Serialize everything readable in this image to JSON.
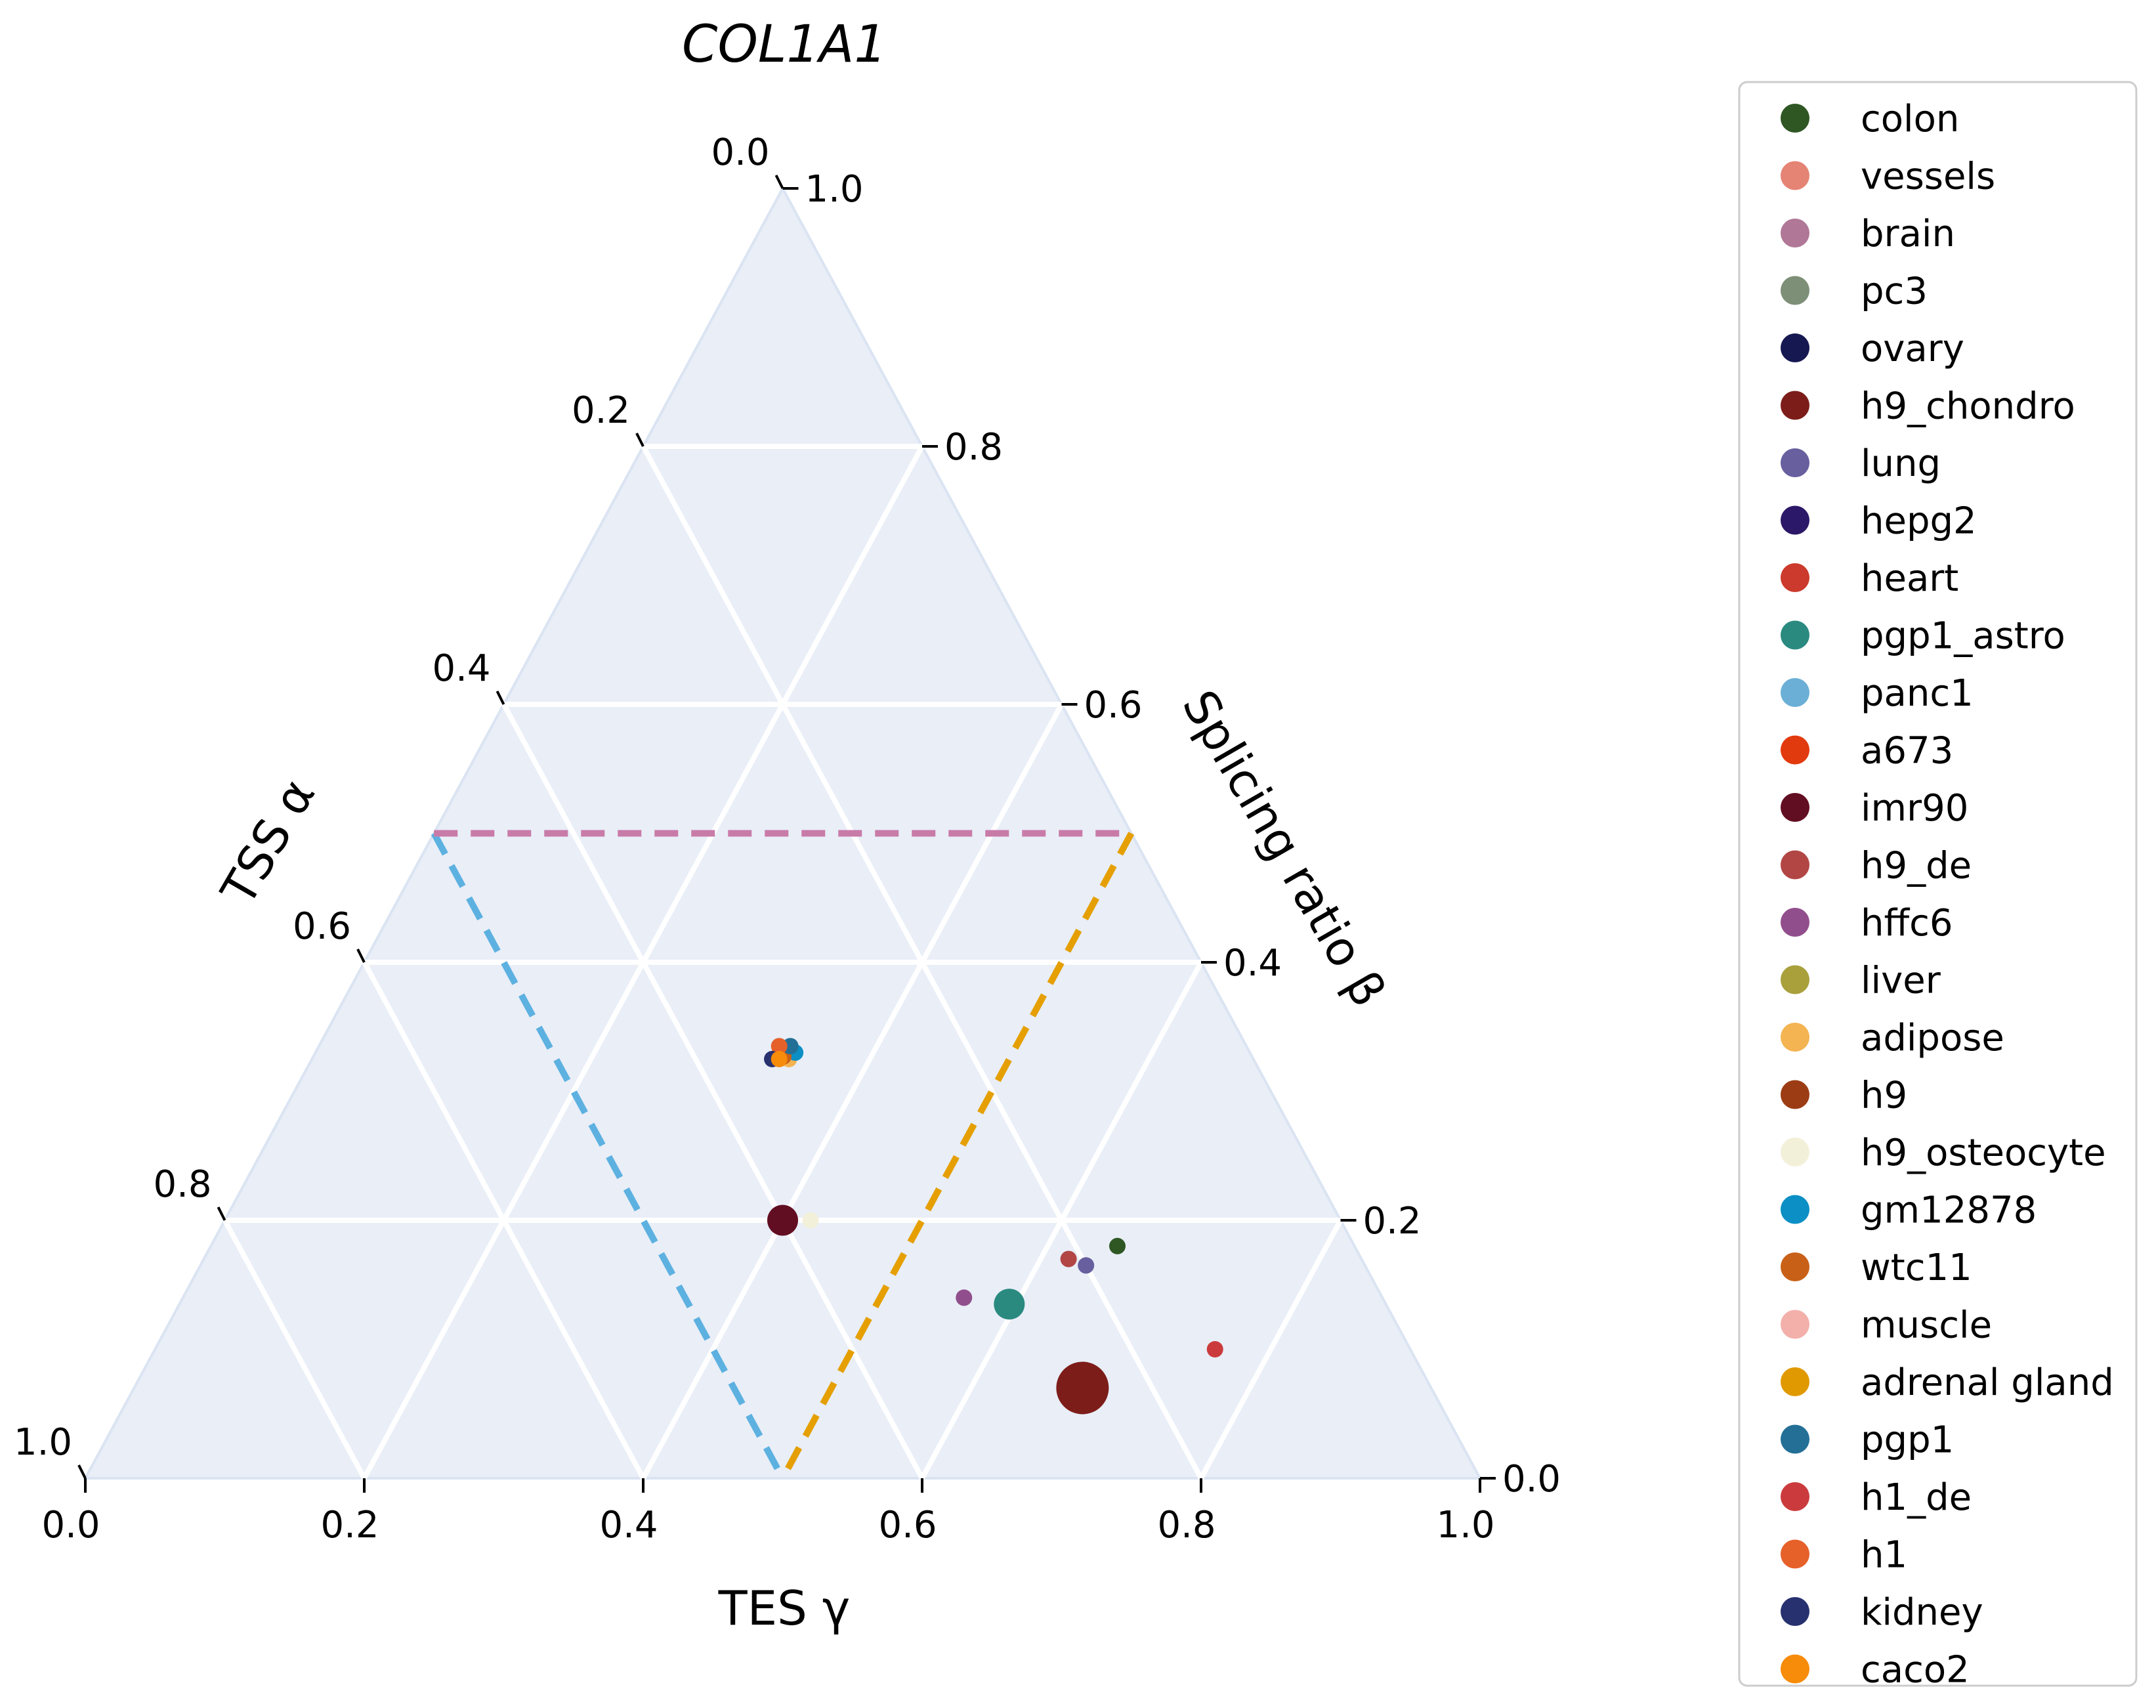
{
  "chart_data": {
    "type": "scatter",
    "subtype": "ternary",
    "title": "COL1A1",
    "axes": {
      "tss": {
        "label": "TSS α",
        "ticks": [
          "0.0",
          "0.2",
          "0.4",
          "0.6",
          "0.8",
          "1.0"
        ]
      },
      "splicing": {
        "label": "Splicing ratio β",
        "ticks": [
          "0.0",
          "0.2",
          "0.4",
          "0.6",
          "0.8",
          "1.0"
        ]
      },
      "tes": {
        "label": "TES γ",
        "ticks": [
          "0.0",
          "0.2",
          "0.4",
          "0.6",
          "0.8",
          "1.0"
        ]
      }
    },
    "grid": true,
    "background_color": "#e9eef7",
    "grid_step": 0.2,
    "reference_lines": [
      {
        "a": [
          0.5,
          0.5
        ],
        "b": [
          0.5,
          0.0
        ],
        "g": [
          0.0,
          0.5
        ],
        "color": "#5db1e0",
        "style": "dashed"
      },
      {
        "a": [
          0.0,
          0.5
        ],
        "b": [
          0.5,
          0.0
        ],
        "g": [
          0.5,
          0.5
        ],
        "color": "#e59f00",
        "style": "dashed"
      },
      {
        "a": [
          0.5,
          0.0
        ],
        "b": [
          0.5,
          0.5
        ],
        "g": [
          0.0,
          0.5
        ],
        "color": "#c97ba8",
        "style": "dashed"
      }
    ],
    "legend_position": "right",
    "series": [
      {
        "name": "colon",
        "color": "#2f5724",
        "points": [
          {
            "a": 0.17,
            "b": 0.18,
            "g": 0.65,
            "size": 1
          }
        ]
      },
      {
        "name": "vessels",
        "color": "#e58474",
        "points": []
      },
      {
        "name": "brain",
        "color": "#b07796",
        "points": []
      },
      {
        "name": "pc3",
        "color": "#7d8f77",
        "points": []
      },
      {
        "name": "ovary",
        "color": "#161851",
        "points": []
      },
      {
        "name": "h9_chondro",
        "color": "#7d1d19",
        "points": [
          {
            "a": 0.25,
            "b": 0.07,
            "g": 0.68,
            "size": 6
          }
        ]
      },
      {
        "name": "lung",
        "color": "#675f9e",
        "points": [
          {
            "a": 0.2,
            "b": 0.165,
            "g": 0.635,
            "size": 1
          }
        ]
      },
      {
        "name": "hepg2",
        "color": "#2c1868",
        "points": []
      },
      {
        "name": "heart",
        "color": "#cb3a2c",
        "points": []
      },
      {
        "name": "pgp1_astro",
        "color": "#2a8a80",
        "points": [
          {
            "a": 0.27,
            "b": 0.135,
            "g": 0.595,
            "size": 3
          }
        ]
      },
      {
        "name": "panc1",
        "color": "#6bafd6",
        "points": []
      },
      {
        "name": "a673",
        "color": "#e23a0f",
        "points": []
      },
      {
        "name": "imr90",
        "color": "#620e22",
        "points": [
          {
            "a": 0.4,
            "b": 0.2,
            "g": 0.4,
            "size": 3
          }
        ]
      },
      {
        "name": "h9_de",
        "color": "#b24645",
        "points": [
          {
            "a": 0.21,
            "b": 0.17,
            "g": 0.62,
            "size": 1
          }
        ]
      },
      {
        "name": "hffc6",
        "color": "#914e8c",
        "points": [
          {
            "a": 0.3,
            "b": 0.14,
            "g": 0.56,
            "size": 1
          }
        ]
      },
      {
        "name": "liver",
        "color": "#a9a03c",
        "points": []
      },
      {
        "name": "adipose",
        "color": "#f3b451",
        "points": [
          {
            "a": 0.333,
            "b": 0.325,
            "g": 0.342,
            "size": 1
          }
        ]
      },
      {
        "name": "h9",
        "color": "#9c3c14",
        "points": [
          {
            "a": 0.332,
            "b": 0.331,
            "g": 0.337,
            "size": 1
          }
        ]
      },
      {
        "name": "h9_osteocyte",
        "color": "#f3f0da",
        "points": [
          {
            "a": 0.38,
            "b": 0.2,
            "g": 0.42,
            "size": 1
          }
        ]
      },
      {
        "name": "gm12878",
        "color": "#0b8fc4",
        "points": [
          {
            "a": 0.326,
            "b": 0.33,
            "g": 0.344,
            "size": 1
          }
        ]
      },
      {
        "name": "wtc11",
        "color": "#c86117",
        "points": [
          {
            "a": 0.336,
            "b": 0.327,
            "g": 0.337,
            "size": 1
          }
        ]
      },
      {
        "name": "muscle",
        "color": "#f3b0ab",
        "points": []
      },
      {
        "name": "adrenal gland",
        "color": "#e09900",
        "points": []
      },
      {
        "name": "pgp1",
        "color": "#236f96",
        "points": [
          {
            "a": 0.327,
            "b": 0.335,
            "g": 0.338,
            "size": 1
          }
        ]
      },
      {
        "name": "h1_de",
        "color": "#cb3b3d",
        "points": [
          {
            "a": 0.14,
            "b": 0.1,
            "g": 0.76,
            "size": 1
          }
        ]
      },
      {
        "name": "h1",
        "color": "#e6602a",
        "points": [
          {
            "a": 0.335,
            "b": 0.335,
            "g": 0.33,
            "size": 1
          }
        ]
      },
      {
        "name": "kidney",
        "color": "#27316f",
        "points": [
          {
            "a": 0.345,
            "b": 0.325,
            "g": 0.33,
            "size": 1
          }
        ]
      },
      {
        "name": "caco2",
        "color": "#f78b0a",
        "points": [
          {
            "a": 0.34,
            "b": 0.325,
            "g": 0.335,
            "size": 1
          }
        ]
      }
    ]
  }
}
